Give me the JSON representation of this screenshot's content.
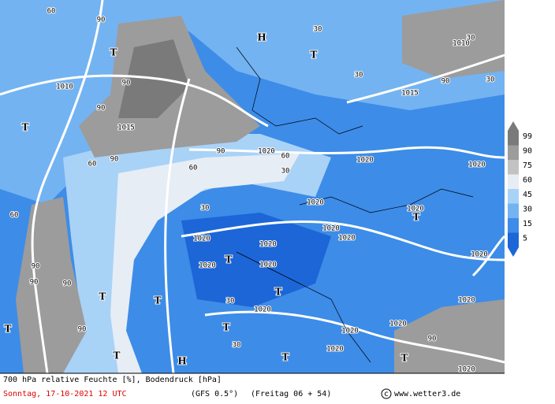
{
  "map": {
    "labels": [
      "1010",
      "1015",
      "1015",
      "1010",
      "1020",
      "1020",
      "1020",
      "1020",
      "1020",
      "1020",
      "1020",
      "1020",
      "1020",
      "1020",
      "1020",
      "1020",
      "1020",
      "1020",
      "1020",
      "1020",
      "1020",
      "1020",
      "H",
      "T",
      "T",
      "T",
      "T",
      "T",
      "T",
      "T",
      "T",
      "T",
      "T",
      "T",
      "T",
      "T",
      "H",
      "90",
      "90",
      "90",
      "90",
      "90",
      "60",
      "60",
      "30",
      "30",
      "30",
      "30",
      "60",
      "90",
      "90",
      "90",
      "90",
      "60",
      "30",
      "30",
      "90",
      "90",
      "60",
      "30",
      "30"
    ]
  },
  "legend": {
    "levels": [
      99,
      90,
      75,
      60,
      45,
      30,
      15,
      5
    ],
    "colors": [
      "#7a7a7a",
      "#9c9c9c",
      "#c2c2c2",
      "#e6edf5",
      "#a9d2f7",
      "#74b3f1",
      "#3d8ce8",
      "#1c66d8"
    ]
  },
  "footer": {
    "line1": "700 hPa relative Feuchte [%], Bodendruck [hPa]",
    "date": "Sonntag, 17-10-2021  12 UTC",
    "model": "(GFS 0.5°)",
    "run": "(Freitag 06 + 54)",
    "credit": "www.wetter3.de"
  }
}
